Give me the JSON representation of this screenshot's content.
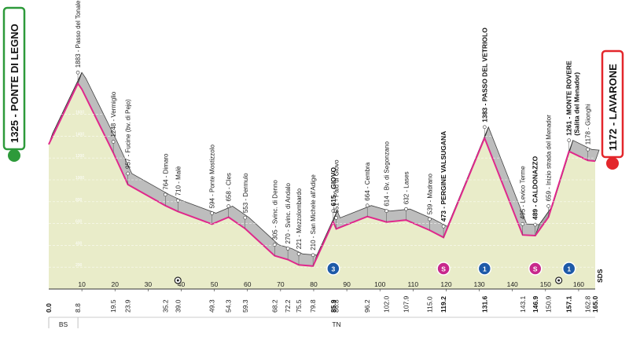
{
  "start": {
    "label": "1325 - PONTE DI LEGNO",
    "alt": 1325,
    "km": 0.0
  },
  "finish": {
    "label": "1172 - LAVARONE",
    "alt": 1172,
    "km": 165.0
  },
  "colors": {
    "profile": "#e9ecc9",
    "climb": "#a7a7a7",
    "line": "#e0288c",
    "start": "#2d9a3a",
    "finish": "#e3262b",
    "axis": "#333333"
  },
  "chart_data": {
    "type": "area",
    "xlabel": "",
    "ylabel": "",
    "xlim": [
      0,
      165
    ],
    "ylim": [
      0,
      2000
    ],
    "y_ticks": [
      200,
      400,
      600,
      800,
      1000,
      1200,
      1400,
      1600
    ],
    "x_ticks": [
      10,
      20,
      30,
      40,
      50,
      60,
      70,
      80,
      90,
      100,
      110,
      120,
      130,
      140,
      150,
      160
    ],
    "points": [
      {
        "km": 0.0,
        "alt": 1325
      },
      {
        "km": 8.8,
        "alt": 1883,
        "label": "1883 - Passo del Tonale"
      },
      {
        "km": 10.0,
        "alt": 1830
      },
      {
        "km": 19.5,
        "alt": 1248,
        "label": "1248 - Vermiglio"
      },
      {
        "km": 23.9,
        "alt": 957,
        "label": "957 - Fucine (bv. di Pejo)"
      },
      {
        "km": 35.2,
        "alt": 764,
        "label": "764 - Dimaro"
      },
      {
        "km": 39.0,
        "alt": 710,
        "label": "710 - Malè"
      },
      {
        "km": 49.3,
        "alt": 594,
        "label": "594 - Ponte Mostizzolo"
      },
      {
        "km": 54.3,
        "alt": 658,
        "label": "658 - Cles"
      },
      {
        "km": 59.3,
        "alt": 553,
        "label": "553 - Dermulo"
      },
      {
        "km": 68.2,
        "alt": 305,
        "label": "305 - Svinc. di Denno"
      },
      {
        "km": 72.2,
        "alt": 270,
        "label": "270 - Svinc. di Andalo"
      },
      {
        "km": 75.5,
        "alt": 221,
        "label": "221 - Mezzolombardo"
      },
      {
        "km": 79.8,
        "alt": 210,
        "label": "210 - San Michele all'Adige"
      },
      {
        "km": 85.9,
        "alt": 615,
        "label": "615 - GIOVO",
        "bold": true,
        "km_bold": true
      },
      {
        "km": 86.8,
        "alt": 551,
        "label": "551 - Palù di Giovo"
      },
      {
        "km": 96.2,
        "alt": 664,
        "label": "664 - Cembra"
      },
      {
        "km": 102.0,
        "alt": 614,
        "label": "614 - Bv. di Segonzano"
      },
      {
        "km": 107.9,
        "alt": 632,
        "label": "632 - Lases"
      },
      {
        "km": 115.0,
        "alt": 539,
        "label": "539 - Madrano"
      },
      {
        "km": 119.2,
        "alt": 473,
        "label": "473 - PERGINE VALSUGANA",
        "bold": true,
        "km_bold": true
      },
      {
        "km": 131.6,
        "alt": 1383,
        "label": "1383 - PASSO DEL VETRIOLO",
        "bold": true,
        "km_bold": true
      },
      {
        "km": 143.1,
        "alt": 495,
        "label": "495 - Levico Terme"
      },
      {
        "km": 146.9,
        "alt": 489,
        "label": "489 - CALDONAZZO",
        "bold": true,
        "km_bold": true
      },
      {
        "km": 150.9,
        "alt": 659,
        "label": "659 - Inizio strada del Menador"
      },
      {
        "km": 157.1,
        "alt": 1261,
        "label": "1261 - MONTE ROVERE",
        "sublabel": "(Salita del Menador)",
        "bold": true,
        "km_bold": true
      },
      {
        "km": 162.8,
        "alt": 1178,
        "label": "1178 - Gionghi"
      },
      {
        "km": 165.0,
        "alt": 1172
      }
    ],
    "km_labels": [
      "0.0",
      "8.8",
      "19.5",
      "23.9",
      "35.2",
      "39.0",
      "49.3",
      "54.3",
      "59.3",
      "68.2",
      "72.2",
      "75.5",
      "79.8",
      "85.9",
      "86.8",
      "96.2",
      "102.0",
      "107.9",
      "115.0",
      "119.2",
      "131.6",
      "143.1",
      "146.9",
      "150.9",
      "157.1",
      "162.8",
      "165.0"
    ],
    "climbs": [
      [
        0,
        8.8
      ],
      [
        79.8,
        85.9
      ],
      [
        119.2,
        131.6
      ],
      [
        146.9,
        157.1
      ]
    ],
    "markers": [
      {
        "km": 85.9,
        "symbol": "3",
        "kind": "gpm-3",
        "color": "#1e5aa8"
      },
      {
        "km": 119.2,
        "symbol": "S",
        "kind": "sprint",
        "color": "#c8288c"
      },
      {
        "km": 131.6,
        "symbol": "1",
        "kind": "gpm-1",
        "color": "#1e5aa8"
      },
      {
        "km": 146.9,
        "symbol": "S",
        "kind": "sprint",
        "color": "#c8288c"
      },
      {
        "km": 157.1,
        "symbol": "1",
        "kind": "gpm-1",
        "color": "#1e5aa8"
      }
    ],
    "feed_zones": [
      {
        "km": 39.0
      },
      {
        "km": 154.0
      }
    ],
    "regions": [
      {
        "label": "BS",
        "from": 0,
        "to": 8.8
      },
      {
        "label": "TN",
        "from": 8.8,
        "to": 165
      }
    ]
  },
  "logo_text": "SDS"
}
